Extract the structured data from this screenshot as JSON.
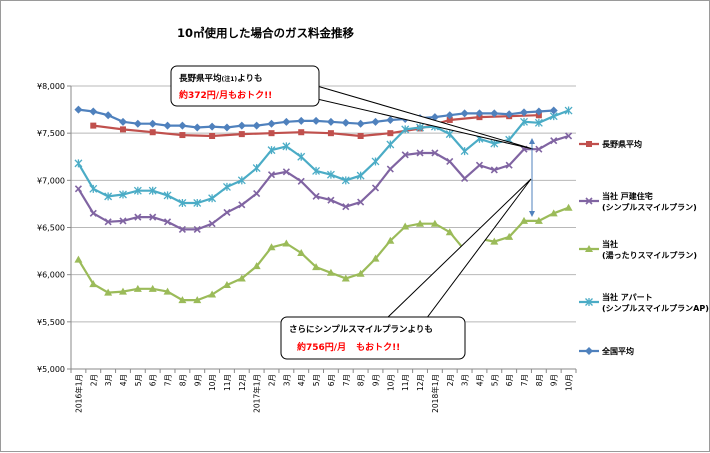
{
  "chart_data": {
    "type": "line",
    "title": "10㎥使用した場合のガス料金推移",
    "ylim": [
      5000,
      8000
    ],
    "y_ticks": [
      "¥5,000",
      "¥5,500",
      "¥6,000",
      "¥6,500",
      "¥7,000",
      "¥7,500",
      "¥8,000"
    ],
    "x_labels": [
      "2016年1月",
      "2月",
      "3月",
      "4月",
      "5月",
      "6月",
      "7月",
      "8月",
      "9月",
      "10月",
      "11月",
      "12月",
      "2017年1月",
      "2月",
      "3月",
      "4月",
      "5月",
      "6月",
      "7月",
      "8月",
      "9月",
      "10月",
      "11月",
      "12月",
      "2018年1月",
      "2月",
      "3月",
      "4月",
      "5月",
      "6月",
      "7月",
      "8月",
      "9月",
      "10月"
    ],
    "grid": true,
    "legend_position": "right",
    "series": [
      {
        "name": "長野県平均",
        "color": "#c0504d",
        "marker": "square",
        "values": [
          null,
          7580,
          null,
          7540,
          null,
          7510,
          null,
          7480,
          null,
          7470,
          null,
          7490,
          null,
          7500,
          null,
          7510,
          null,
          7500,
          null,
          7470,
          null,
          7500,
          null,
          7550,
          null,
          7640,
          null,
          7670,
          null,
          7680,
          null,
          7690,
          null,
          null
        ]
      },
      {
        "name": "当社 戸建住宅 (シンプルスマイルプラン)",
        "color": "#8064a2",
        "marker": "x",
        "values": [
          6910,
          6650,
          6560,
          6570,
          6610,
          6610,
          6560,
          6480,
          6480,
          6540,
          6660,
          6740,
          6860,
          7060,
          7090,
          6990,
          6830,
          6790,
          6720,
          6770,
          6920,
          7120,
          7270,
          7290,
          7290,
          7200,
          7020,
          7160,
          7110,
          7160,
          7330,
          7330,
          7420,
          7470
        ]
      },
      {
        "name": "当社 (湯ったりスマイルプラン)",
        "color": "#9bbb59",
        "marker": "triangle",
        "values": [
          6160,
          5900,
          5810,
          5820,
          5850,
          5850,
          5820,
          5730,
          5730,
          5790,
          5890,
          5960,
          6090,
          6290,
          6330,
          6230,
          6080,
          6020,
          5960,
          6010,
          6170,
          6360,
          6510,
          6540,
          6540,
          6450,
          6260,
          6380,
          6350,
          6400,
          6570,
          6570,
          6650,
          6710
        ]
      },
      {
        "name": "当社 アパート (シンプルスマイルプランAP)",
        "color": "#4bacc6",
        "marker": "star",
        "values": [
          7180,
          6910,
          6830,
          6850,
          6890,
          6890,
          6840,
          6760,
          6760,
          6810,
          6930,
          7000,
          7130,
          7320,
          7360,
          7250,
          7100,
          7060,
          7000,
          7050,
          7200,
          7380,
          7540,
          7560,
          7570,
          7490,
          7310,
          7440,
          7390,
          7430,
          7620,
          7610,
          7680,
          7740
        ]
      },
      {
        "name": "全国平均",
        "color": "#4f81bd",
        "marker": "diamond",
        "values": [
          7750,
          7730,
          7690,
          7620,
          7600,
          7600,
          7580,
          7580,
          7560,
          7570,
          7560,
          7580,
          7580,
          7600,
          7620,
          7630,
          7630,
          7620,
          7610,
          7600,
          7620,
          7640,
          7650,
          7660,
          7670,
          7690,
          7710,
          7710,
          7710,
          7700,
          7720,
          7730,
          7740,
          null
        ]
      }
    ]
  },
  "callouts": {
    "top": {
      "line1": "長野県平均",
      "sup": "(注1)",
      "line1b": "よりも",
      "line2": "約372円/月もおトク!!"
    },
    "bottom": {
      "line1": "さらにシンプルスマイルプランよりも",
      "line2a": "約756円/月",
      "line2b": "もおトク!!"
    }
  }
}
